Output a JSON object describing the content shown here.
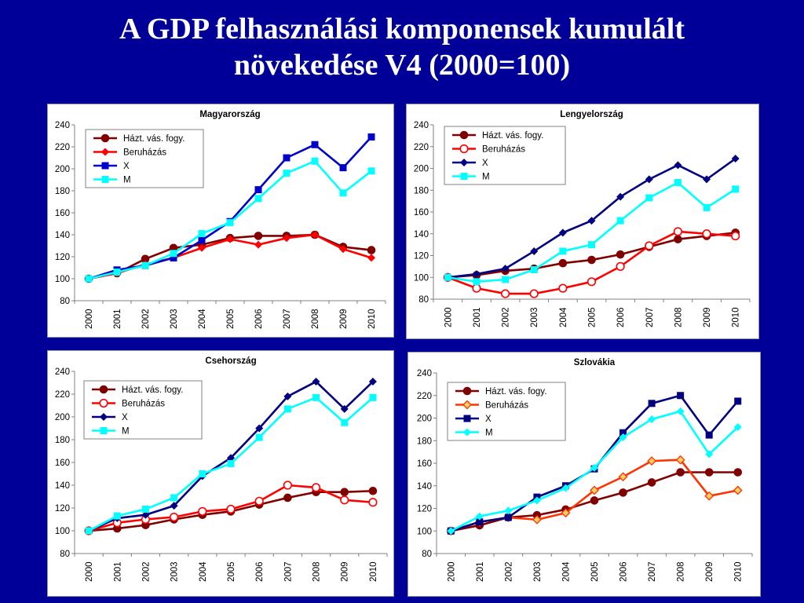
{
  "slide": {
    "title_line1": "A GDP felhasználási komponensek kumulált",
    "title_line2": "növekedése V4 (2000=100)"
  },
  "chart_data": [
    {
      "type": "line",
      "title": "Magyarország",
      "categories": [
        "2000",
        "2001",
        "2002",
        "2003",
        "2004",
        "2005",
        "2006",
        "2007",
        "2008",
        "2009",
        "2010"
      ],
      "ylim": [
        80,
        240
      ],
      "yticks": [
        80,
        100,
        120,
        140,
        160,
        180,
        200,
        220,
        240
      ],
      "grid": false,
      "legend": "top-left",
      "series": [
        {
          "name": "Házt. vás. fogy.",
          "color": "#800000",
          "marker": "circle-filled",
          "values": [
            100,
            105,
            118,
            128,
            131,
            137,
            139,
            139,
            140,
            129,
            126
          ]
        },
        {
          "name": "Beruházás",
          "color": "#ff0000",
          "marker": "diamond-filled",
          "values": [
            100,
            105,
            113,
            119,
            128,
            136,
            131,
            137,
            140,
            127,
            119
          ]
        },
        {
          "name": "X",
          "color": "#0000cc",
          "marker": "square-filled",
          "values": [
            100,
            108,
            112,
            119,
            135,
            152,
            181,
            210,
            222,
            201,
            229
          ]
        },
        {
          "name": "M",
          "color": "#00ffff",
          "marker": "square-filled",
          "values": [
            100,
            106,
            112,
            123,
            141,
            151,
            173,
            196,
            207,
            178,
            198
          ]
        }
      ]
    },
    {
      "type": "line",
      "title": "Lengyelország",
      "categories": [
        "2000",
        "2001",
        "2002",
        "2003",
        "2004",
        "2005",
        "2006",
        "2007",
        "2008",
        "2009",
        "2010"
      ],
      "ylim": [
        80,
        240
      ],
      "yticks": [
        80,
        100,
        120,
        140,
        160,
        180,
        200,
        220,
        240
      ],
      "grid": false,
      "legend": "top-left",
      "series": [
        {
          "name": "Házt. vás. fogy.",
          "color": "#800000",
          "marker": "circle-filled",
          "values": [
            100,
            102,
            106,
            108,
            113,
            116,
            121,
            128,
            135,
            138,
            141
          ]
        },
        {
          "name": "Beruházás",
          "color": "#ff0000",
          "marker": "circle-open",
          "values": [
            100,
            90,
            85,
            85,
            90,
            96,
            110,
            129,
            142,
            140,
            138
          ]
        },
        {
          "name": "X",
          "color": "#000080",
          "marker": "diamond-filled",
          "values": [
            100,
            103,
            108,
            124,
            141,
            152,
            174,
            190,
            203,
            190,
            209
          ]
        },
        {
          "name": "M",
          "color": "#00ffff",
          "marker": "square-filled",
          "values": [
            100,
            96,
            98,
            107,
            124,
            130,
            152,
            173,
            187,
            164,
            181
          ]
        }
      ]
    },
    {
      "type": "line",
      "title": "Csehország",
      "categories": [
        "2000",
        "2001",
        "2002",
        "2003",
        "2004",
        "2005",
        "2006",
        "2007",
        "2008",
        "2009",
        "2010"
      ],
      "ylim": [
        80,
        240
      ],
      "yticks": [
        80,
        100,
        120,
        140,
        160,
        180,
        200,
        220,
        240
      ],
      "grid": false,
      "legend": "top-left",
      "series": [
        {
          "name": "Házt. vás. fogy.",
          "color": "#800000",
          "marker": "circle-filled",
          "values": [
            100,
            102,
            105,
            110,
            114,
            117,
            123,
            129,
            134,
            134,
            135
          ]
        },
        {
          "name": "Beruházás",
          "color": "#ff0000",
          "marker": "circle-open",
          "values": [
            100,
            107,
            110,
            112,
            117,
            119,
            126,
            140,
            138,
            127,
            125
          ]
        },
        {
          "name": "X",
          "color": "#000080",
          "marker": "diamond-filled",
          "values": [
            100,
            111,
            114,
            122,
            148,
            164,
            190,
            218,
            231,
            207,
            231
          ]
        },
        {
          "name": "M",
          "color": "#00ffff",
          "marker": "square-filled",
          "values": [
            100,
            113,
            119,
            129,
            150,
            159,
            182,
            207,
            217,
            195,
            217
          ]
        }
      ]
    },
    {
      "type": "line",
      "title": "Szlovákia",
      "categories": [
        "2000",
        "2001",
        "2002",
        "2003",
        "2004",
        "2005",
        "2006",
        "2007",
        "2008",
        "2009",
        "2010"
      ],
      "ylim": [
        80,
        240
      ],
      "yticks": [
        80,
        100,
        120,
        140,
        160,
        180,
        200,
        220,
        240
      ],
      "grid": false,
      "legend": "top-left",
      "series": [
        {
          "name": "Házt. vás. fogy.",
          "color": "#800000",
          "marker": "circle-filled",
          "values": [
            100,
            105,
            112,
            114,
            119,
            127,
            134,
            143,
            152,
            152,
            152
          ]
        },
        {
          "name": "Beruházás",
          "color": "#ff3300",
          "marker": "diamond-orange",
          "values": [
            100,
            108,
            112,
            110,
            116,
            136,
            148,
            162,
            163,
            131,
            136
          ]
        },
        {
          "name": "X",
          "color": "#000080",
          "marker": "square-filled",
          "values": [
            100,
            108,
            112,
            130,
            140,
            155,
            187,
            213,
            220,
            185,
            215
          ]
        },
        {
          "name": "M",
          "color": "#00ffff",
          "marker": "diamond-filled",
          "values": [
            100,
            113,
            118,
            127,
            138,
            156,
            183,
            199,
            206,
            168,
            192
          ]
        }
      ]
    }
  ]
}
